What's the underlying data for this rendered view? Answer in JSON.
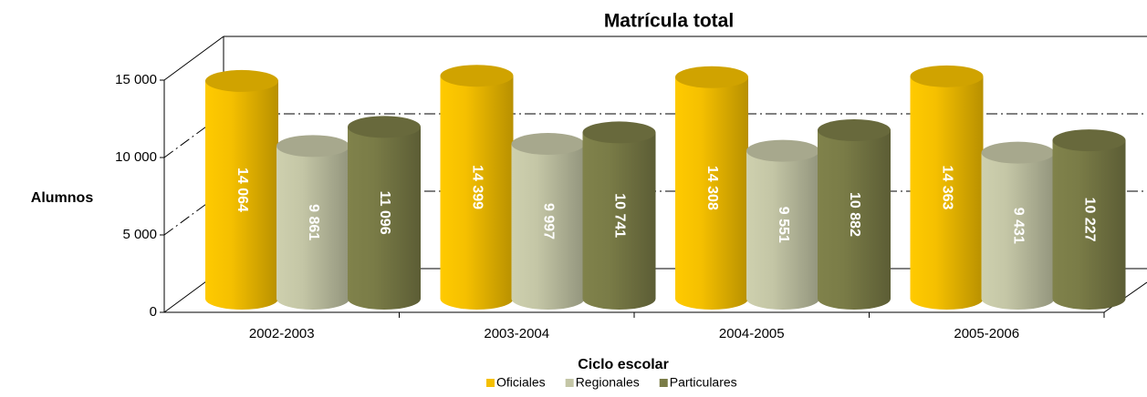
{
  "chart_data": {
    "type": "bar",
    "title": "Matrícula total",
    "y_label": "Alumnos",
    "x_label": "Ciclo escolar",
    "categories": [
      "2002-2003",
      "2003-2004",
      "2004-2005",
      "2005-2006"
    ],
    "series": [
      {
        "name": "Oficiales",
        "color": "#f5c000",
        "values": [
          14064,
          14399,
          14308,
          14363
        ],
        "value_labels": [
          "14 064",
          "14 399",
          "14 308",
          "14 363"
        ]
      },
      {
        "name": "Regionales",
        "color": "#c4c6a6",
        "values": [
          9861,
          9997,
          9551,
          9431
        ],
        "value_labels": [
          "9 861",
          "9 997",
          "9 551",
          "9 431"
        ]
      },
      {
        "name": "Particulares",
        "color": "#7a7c47",
        "values": [
          11096,
          10741,
          10882,
          10227
        ],
        "value_labels": [
          "11 096",
          "10 741",
          "10 882",
          "10 227"
        ]
      }
    ],
    "ylim": [
      0,
      15000
    ],
    "yticks": [
      {
        "value": 0,
        "label": "0"
      },
      {
        "value": 5000,
        "label": "5 000"
      },
      {
        "value": 10000,
        "label": "10 000"
      },
      {
        "value": 15000,
        "label": "15 000"
      }
    ],
    "grid": true,
    "legend": "bottom"
  }
}
